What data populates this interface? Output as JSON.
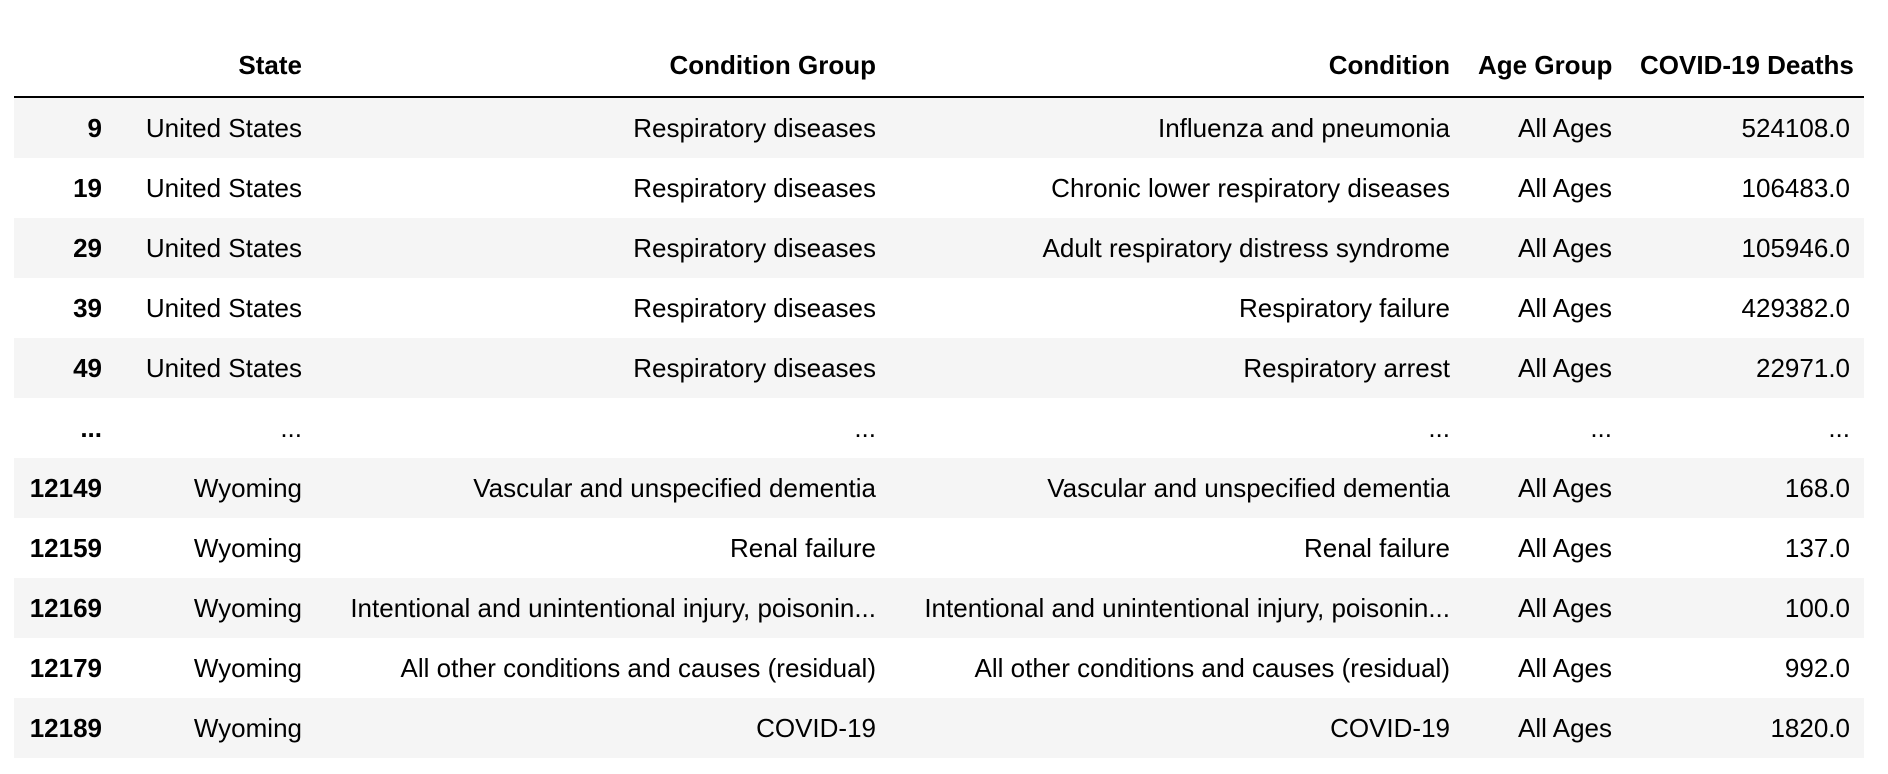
{
  "table": {
    "columns": [
      "",
      "State",
      "Condition Group",
      "Condition",
      "Age Group",
      "COVID-19 Deaths"
    ],
    "rows": [
      {
        "index": "9",
        "state": "United States",
        "condition_group": "Respiratory diseases",
        "condition": "Influenza and pneumonia",
        "age_group": "All Ages",
        "deaths": "524108.0"
      },
      {
        "index": "19",
        "state": "United States",
        "condition_group": "Respiratory diseases",
        "condition": "Chronic lower respiratory diseases",
        "age_group": "All Ages",
        "deaths": "106483.0"
      },
      {
        "index": "29",
        "state": "United States",
        "condition_group": "Respiratory diseases",
        "condition": "Adult respiratory distress syndrome",
        "age_group": "All Ages",
        "deaths": "105946.0"
      },
      {
        "index": "39",
        "state": "United States",
        "condition_group": "Respiratory diseases",
        "condition": "Respiratory failure",
        "age_group": "All Ages",
        "deaths": "429382.0"
      },
      {
        "index": "49",
        "state": "United States",
        "condition_group": "Respiratory diseases",
        "condition": "Respiratory arrest",
        "age_group": "All Ages",
        "deaths": "22971.0"
      },
      {
        "index": "...",
        "state": "...",
        "condition_group": "...",
        "condition": "...",
        "age_group": "...",
        "deaths": "..."
      },
      {
        "index": "12149",
        "state": "Wyoming",
        "condition_group": "Vascular and unspecified dementia",
        "condition": "Vascular and unspecified dementia",
        "age_group": "All Ages",
        "deaths": "168.0"
      },
      {
        "index": "12159",
        "state": "Wyoming",
        "condition_group": "Renal failure",
        "condition": "Renal failure",
        "age_group": "All Ages",
        "deaths": "137.0"
      },
      {
        "index": "12169",
        "state": "Wyoming",
        "condition_group": "Intentional and unintentional injury, poisonin...",
        "condition": "Intentional and unintentional injury, poisonin...",
        "age_group": "All Ages",
        "deaths": "100.0"
      },
      {
        "index": "12179",
        "state": "Wyoming",
        "condition_group": "All other conditions and causes (residual)",
        "condition": "All other conditions and causes (residual)",
        "age_group": "All Ages",
        "deaths": "992.0"
      },
      {
        "index": "12189",
        "state": "Wyoming",
        "condition_group": "COVID-19",
        "condition": "COVID-19",
        "age_group": "All Ages",
        "deaths": "1820.0"
      }
    ]
  }
}
